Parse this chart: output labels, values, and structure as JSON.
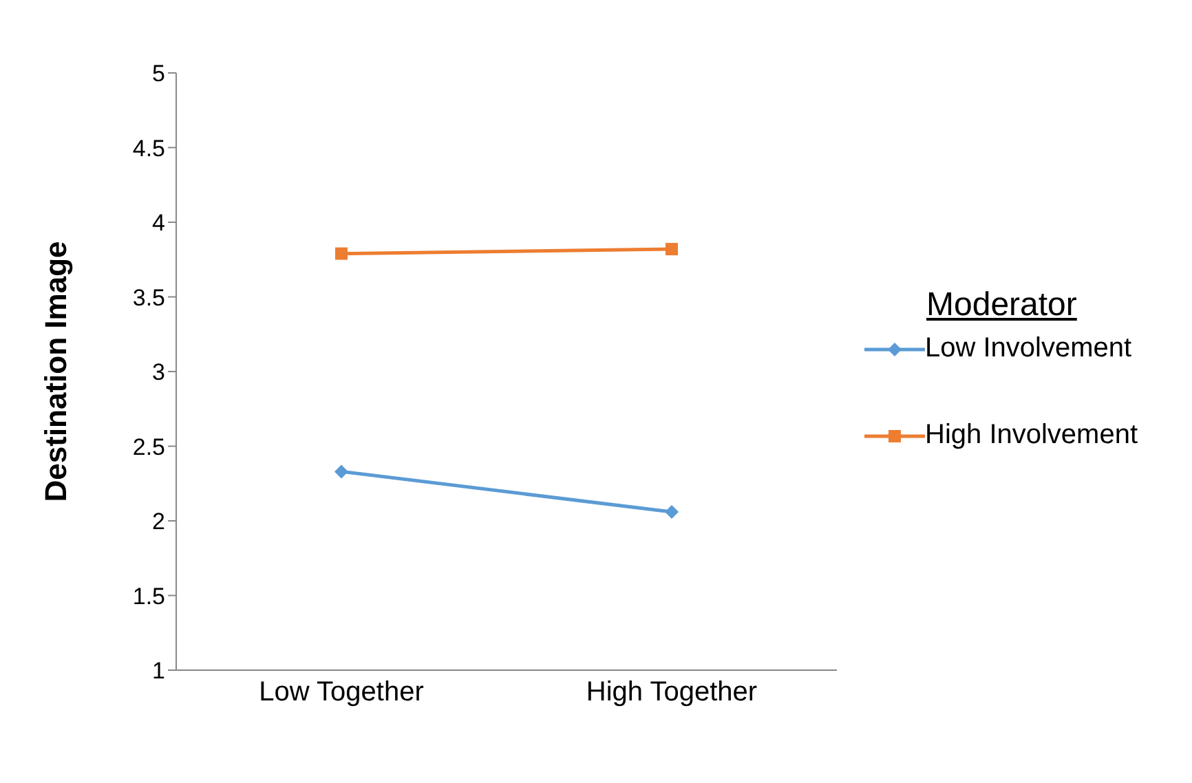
{
  "chart_data": {
    "type": "line",
    "ylabel": "Destination Image",
    "legend_title": "Moderator",
    "legend": "right",
    "categories": [
      "Low Together",
      "High Together"
    ],
    "series": [
      {
        "name": "Low Involvement",
        "color": "#5b9bd5",
        "values": [
          2.33,
          2.06
        ],
        "marker": "diamond"
      },
      {
        "name": "High Involvement",
        "color": "#ed7d31",
        "values": [
          3.79,
          3.82
        ],
        "marker": "square"
      }
    ],
    "ylim": [
      1,
      5
    ],
    "yticks": [
      1,
      1.5,
      2,
      2.5,
      3,
      3.5,
      4,
      4.5,
      5
    ],
    "grid": false
  }
}
